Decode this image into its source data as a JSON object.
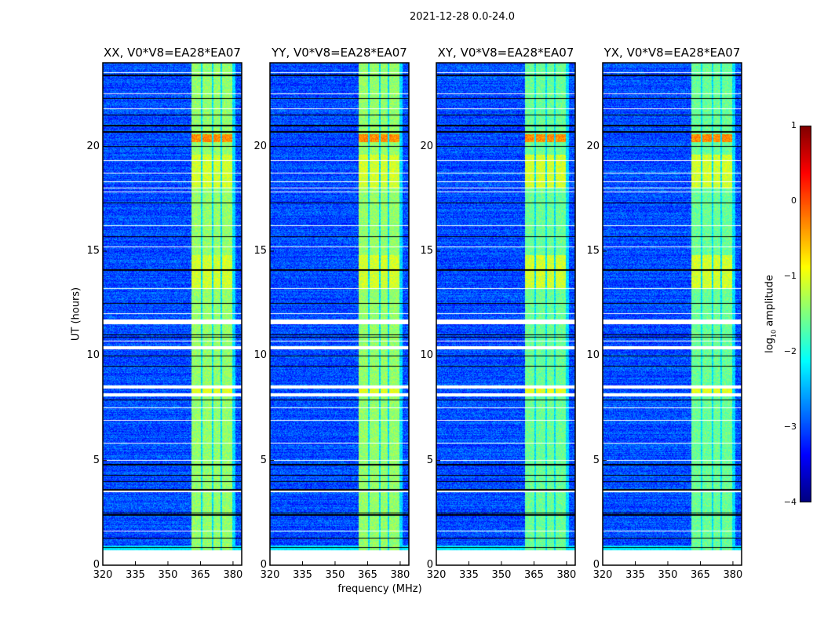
{
  "chart_data": {
    "type": "heatmap",
    "title": "2021-12-28 0.0-24.0",
    "xlabel": "frequency (MHz)",
    "ylabel": "UT (hours)",
    "xlim": [
      320,
      384
    ],
    "ylim": [
      0,
      24
    ],
    "xticks": [
      320,
      335,
      350,
      365,
      380
    ],
    "yticks": [
      0,
      5,
      10,
      15,
      20
    ],
    "panels": [
      {
        "title": "XX, V0*V8=EA28*EA07"
      },
      {
        "title": "YY, V0*V8=EA28*EA07"
      },
      {
        "title": "XY, V0*V8=EA28*EA07"
      },
      {
        "title": "YX, V0*V8=EA28*EA07"
      }
    ],
    "colorbar": {
      "label_prefix": "log",
      "label_sub": "10",
      "label_suffix": " amplitude",
      "colormap": "jet",
      "range": [
        -4,
        1
      ],
      "ticks": [
        "1",
        "0",
        "−1",
        "−2",
        "−3",
        "−4"
      ]
    },
    "background_log_amplitude": -3.0,
    "rfi_subbands_mhz": [
      [
        361,
        365.3
      ],
      [
        366,
        370.3
      ],
      [
        371,
        374.3
      ],
      [
        375,
        379.5
      ]
    ],
    "rfi_log_amplitude": -1.4,
    "hot_times_hours": [
      [
        20.2,
        20.6,
        -0.3
      ],
      [
        8.15,
        8.45,
        -1.0
      ],
      [
        13.2,
        14.8,
        -1.1
      ],
      [
        18.0,
        19.6,
        -1.1
      ]
    ],
    "flagged_times_hours": [
      [
        0,
        0.7
      ],
      [
        1.6,
        1.64
      ],
      [
        3.5,
        3.55
      ],
      [
        5.0,
        5.04
      ],
      [
        5.8,
        5.84
      ],
      [
        6.9,
        6.94
      ],
      [
        7.5,
        7.54
      ],
      [
        8.05,
        8.2
      ],
      [
        8.45,
        8.6
      ],
      [
        10.3,
        10.45
      ],
      [
        10.68,
        10.74
      ],
      [
        11.5,
        11.75
      ],
      [
        12.0,
        12.04
      ],
      [
        13.2,
        13.24
      ],
      [
        15.2,
        15.24
      ],
      [
        16.2,
        16.24
      ],
      [
        17.8,
        17.84
      ],
      [
        18.0,
        18.05
      ],
      [
        18.3,
        18.34
      ],
      [
        18.7,
        18.74
      ],
      [
        19.3,
        19.34
      ],
      [
        21.8,
        21.84
      ],
      [
        22.5,
        22.54
      ],
      [
        23.5,
        23.54
      ]
    ],
    "dark_times_hours": [
      0.85,
      1.3,
      2.4,
      2.5,
      3.6,
      4.0,
      4.3,
      4.8,
      7.9,
      9.5,
      10.0,
      10.9,
      11.0,
      12.5,
      14.1,
      15.7,
      17.3,
      20.0,
      20.7,
      21.0,
      21.5,
      22.3,
      23.4
    ]
  }
}
